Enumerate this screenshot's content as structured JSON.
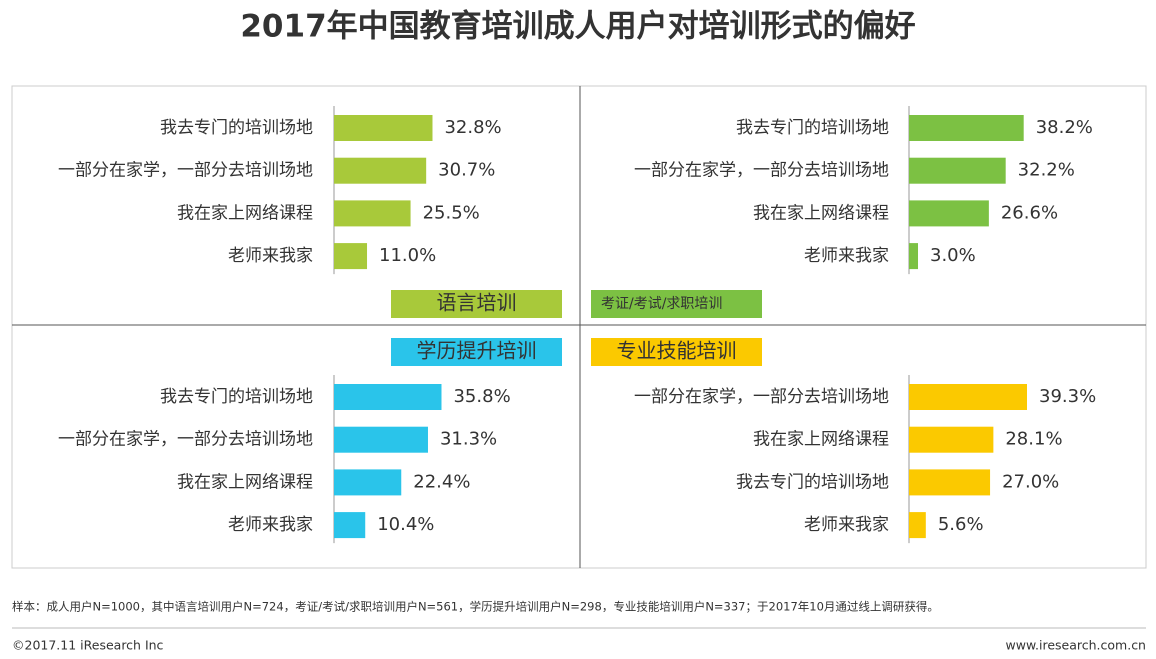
{
  "title": "2017年中国教育培训成人用户对培训形式的偏好",
  "chart_data": [
    {
      "type": "bar",
      "title": "语言培训",
      "color": "#a8c93a",
      "categories": [
        "我去专门的培训场地",
        "一部分在家学，一部分去培训场地",
        "我在家上网络课程",
        "老师来我家"
      ],
      "values": [
        32.8,
        30.7,
        25.5,
        11.0
      ],
      "value_labels": [
        "32.8%",
        "30.7%",
        "25.5%",
        "11.0%"
      ]
    },
    {
      "type": "bar",
      "title": "考证/考试/求职培训",
      "color": "#7cc143",
      "categories": [
        "我去专门的培训场地",
        "一部分在家学，一部分去培训场地",
        "我在家上网络课程",
        "老师来我家"
      ],
      "values": [
        38.2,
        32.2,
        26.6,
        3.0
      ],
      "value_labels": [
        "38.2%",
        "32.2%",
        "26.6%",
        "3.0%"
      ]
    },
    {
      "type": "bar",
      "title": "学历提升培训",
      "color": "#2ac4ea",
      "categories": [
        "我去专门的培训场地",
        "一部分在家学，一部分去培训场地",
        "我在家上网络课程",
        "老师来我家"
      ],
      "values": [
        35.8,
        31.3,
        22.4,
        10.4
      ],
      "value_labels": [
        "35.8%",
        "31.3%",
        "22.4%",
        "10.4%"
      ]
    },
    {
      "type": "bar",
      "title": "专业技能培训",
      "color": "#fbc900",
      "categories": [
        "一部分在家学，一部分去培训场地",
        "我在家上网络课程",
        "我去专门的培训场地",
        "老师来我家"
      ],
      "values": [
        39.3,
        28.1,
        27.0,
        5.6
      ],
      "value_labels": [
        "39.3%",
        "28.1%",
        "27.0%",
        "5.6%"
      ]
    }
  ],
  "note": "样本：成人用户N=1000，其中语言培训用户N=724，考证/考试/求职培训用户N=561，学历提升培训用户N=298，专业技能培训用户N=337；于2017年10月通过线上调研获得。",
  "copyright": "©2017.11 iResearch Inc",
  "website": "www.iresearch.com.cn"
}
